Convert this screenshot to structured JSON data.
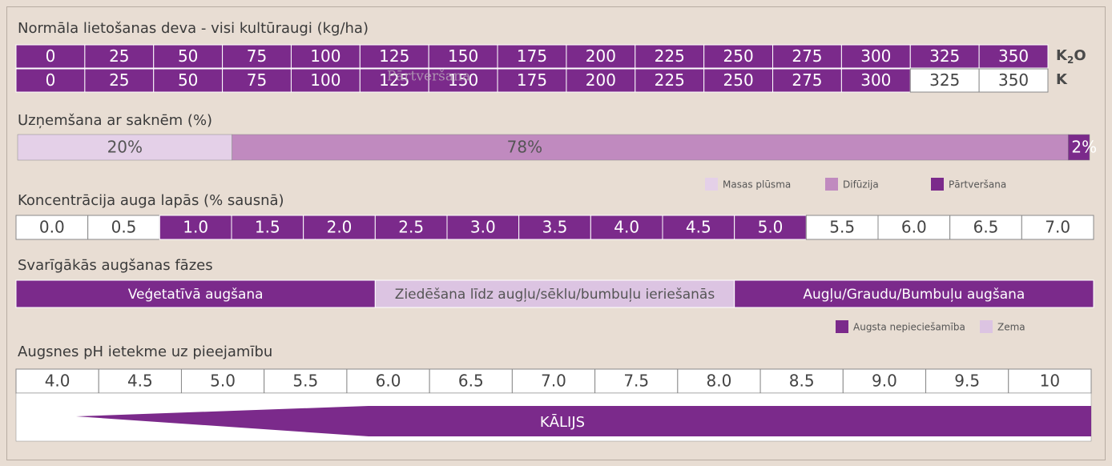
{
  "dose": {
    "title": "Normāla lietošanas deva - visi kultūraugi (kg/ha)",
    "rows": [
      {
        "unit": [
          "K",
          "2",
          "O"
        ],
        "labels": [
          "0",
          "25",
          "50",
          "75",
          "100",
          "125",
          "150",
          "175",
          "200",
          "225",
          "250",
          "275",
          "300",
          "325",
          "350"
        ],
        "fills": [
          "#7b2a8b",
          "#7b2a8b",
          "#7b2a8b",
          "#7b2a8b",
          "#7b2a8b",
          "#7b2a8b",
          "#7b2a8b",
          "#7b2a8b",
          "#7b2a8b",
          "#7b2a8b",
          "#7b2a8b",
          "#7b2a8b",
          "#7b2a8b",
          "#7b2a8b",
          "#7b2a8b"
        ]
      },
      {
        "unit": [
          "K"
        ],
        "labels": [
          "0",
          "25",
          "50",
          "75",
          "100",
          "125",
          "150",
          "175",
          "200",
          "225",
          "250",
          "275",
          "300",
          "325",
          "350"
        ],
        "fills": [
          "#7b2a8b",
          "#7b2a8b",
          "#7b2a8b",
          "#7b2a8b",
          "#7b2a8b",
          "#7b2a8b",
          "#7b2a8b",
          "#7b2a8b",
          "#7b2a8b",
          "#7b2a8b",
          "#7b2a8b",
          "#7b2a8b",
          "#7b2a8b",
          "#ffffff",
          "#ffffff"
        ]
      }
    ],
    "overlay_text": "Pārtveršana"
  },
  "uptake": {
    "title": "Uzņemšana ar saknēm (%)",
    "segments": [
      {
        "name": "Masas plūsma",
        "value": 20,
        "label": "20%",
        "color": "#e4d0e8"
      },
      {
        "name": "Difūzija",
        "value": 78,
        "label": "78%",
        "color": "#c08abf"
      },
      {
        "name": "Pārtveršana",
        "value": 2,
        "label": "2%",
        "color": "#7b2a8b"
      }
    ]
  },
  "concentration": {
    "title": "Koncentrācija auga lapās (% sausnā)",
    "labels": [
      "0.0",
      "0.5",
      "1.0",
      "1.5",
      "2.0",
      "2.5",
      "3.0",
      "3.5",
      "4.0",
      "4.5",
      "5.0",
      "5.5",
      "6.0",
      "6.5",
      "7.0"
    ],
    "fills": [
      "#ffffff",
      "#ffffff",
      "#7b2a8b",
      "#7b2a8b",
      "#7b2a8b",
      "#7b2a8b",
      "#7b2a8b",
      "#7b2a8b",
      "#7b2a8b",
      "#7b2a8b",
      "#7b2a8b",
      "#ffffff",
      "#ffffff",
      "#ffffff",
      "#ffffff"
    ]
  },
  "phases": {
    "title": "Svarīgākās augšanas fāzes",
    "items": [
      {
        "label": "Veģetatīvā augšana",
        "color": "#7b2a8b"
      },
      {
        "label": "Ziedēšana līdz augļu/sēklu/bumbuļu ieriešanās",
        "color": "#dcc4e2"
      },
      {
        "label": "Augļu/Graudu/Bumbuļu augšana",
        "color": "#7b2a8b"
      }
    ],
    "legend": [
      {
        "name": "Augsta nepieciešamība",
        "color": "#7b2a8b"
      },
      {
        "name": "Zema",
        "color": "#dcc4e2"
      }
    ]
  },
  "ph": {
    "title": "Augsnes pH ietekme uz pieejamību",
    "labels": [
      "4.0",
      "4.5",
      "5.0",
      "5.5",
      "6.0",
      "6.5",
      "7.0",
      "7.5",
      "8.0",
      "8.5",
      "9.0",
      "9.5",
      "10"
    ],
    "nutrient": "KĀLIJS",
    "color": "#7b2a8b"
  }
}
